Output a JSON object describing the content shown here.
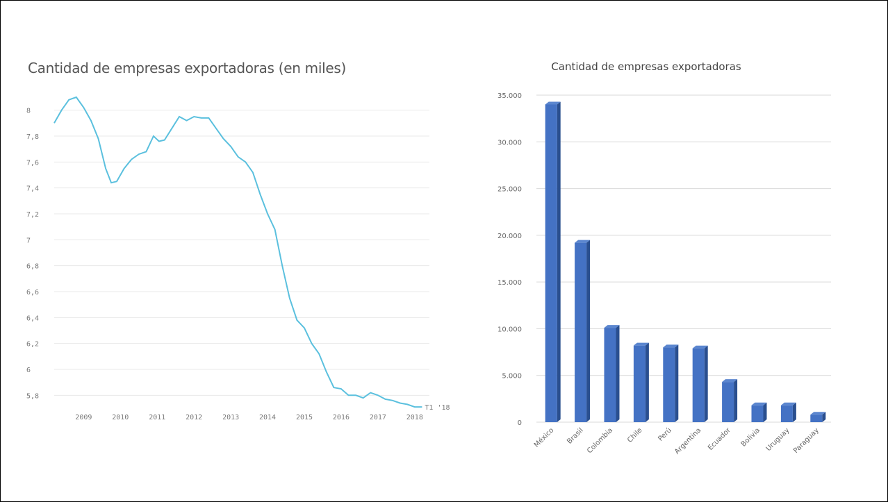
{
  "chart_data": [
    {
      "type": "line",
      "title": "Cantidad de empresas exportadoras (en miles)",
      "y_tick_labels": [
        "8",
        "7,8",
        "7,6",
        "7,4",
        "7,2",
        "7",
        "6,8",
        "6,6",
        "6,4",
        "6,2",
        "6",
        "5,8"
      ],
      "ylim": [
        5.7,
        8.1
      ],
      "x_tick_labels": [
        "2009",
        "2010",
        "2011",
        "2012",
        "2013",
        "2014",
        "2015",
        "2016",
        "2017",
        "2018"
      ],
      "end_label": "T1 '18",
      "color": "#5bc0de",
      "grid": true,
      "series": [
        {
          "x": [
            2008.3,
            2008.5,
            2008.7,
            2008.9,
            2009.1,
            2009.3,
            2009.5,
            2009.7,
            2009.85,
            2010.0,
            2010.2,
            2010.4,
            2010.6,
            2010.8,
            2011.0,
            2011.15,
            2011.3,
            2011.5,
            2011.7,
            2011.9,
            2012.1,
            2012.3,
            2012.5,
            2012.7,
            2012.9,
            2013.1,
            2013.3,
            2013.5,
            2013.7,
            2013.9,
            2014.1,
            2014.3,
            2014.5,
            2014.7,
            2014.9,
            2015.1,
            2015.3,
            2015.5,
            2015.7,
            2015.9,
            2016.1,
            2016.3,
            2016.5,
            2016.7,
            2016.9,
            2017.1,
            2017.3,
            2017.5,
            2017.7,
            2017.9,
            2018.1,
            2018.3
          ],
          "y": [
            7.9,
            8.0,
            8.08,
            8.1,
            8.02,
            7.92,
            7.78,
            7.55,
            7.44,
            7.45,
            7.55,
            7.62,
            7.66,
            7.68,
            7.8,
            7.76,
            7.77,
            7.86,
            7.95,
            7.92,
            7.95,
            7.94,
            7.94,
            7.86,
            7.78,
            7.72,
            7.64,
            7.6,
            7.52,
            7.35,
            7.2,
            7.08,
            6.8,
            6.55,
            6.38,
            6.32,
            6.2,
            6.12,
            5.98,
            5.86,
            5.85,
            5.8,
            5.8,
            5.78,
            5.82,
            5.8,
            5.77,
            5.76,
            5.74,
            5.73,
            5.71,
            5.71
          ]
        }
      ]
    },
    {
      "type": "bar",
      "title": "Cantidad de empresas exportadoras",
      "categories": [
        "México",
        "Brasil",
        "Colombia",
        "Chile",
        "Perú",
        "Argentina",
        "Ecuador",
        "Bolivia",
        "Uruguay",
        "Paraguay"
      ],
      "values": [
        34000,
        19200,
        10100,
        8200,
        8000,
        7900,
        4300,
        1800,
        1800,
        800
      ],
      "ylim": [
        0,
        35000
      ],
      "y_tick_labels": [
        "0",
        "5.000",
        "10.000",
        "15.000",
        "20.000",
        "25.000",
        "30.000",
        "35.000"
      ],
      "color": "#4472c4",
      "grid": true
    }
  ]
}
